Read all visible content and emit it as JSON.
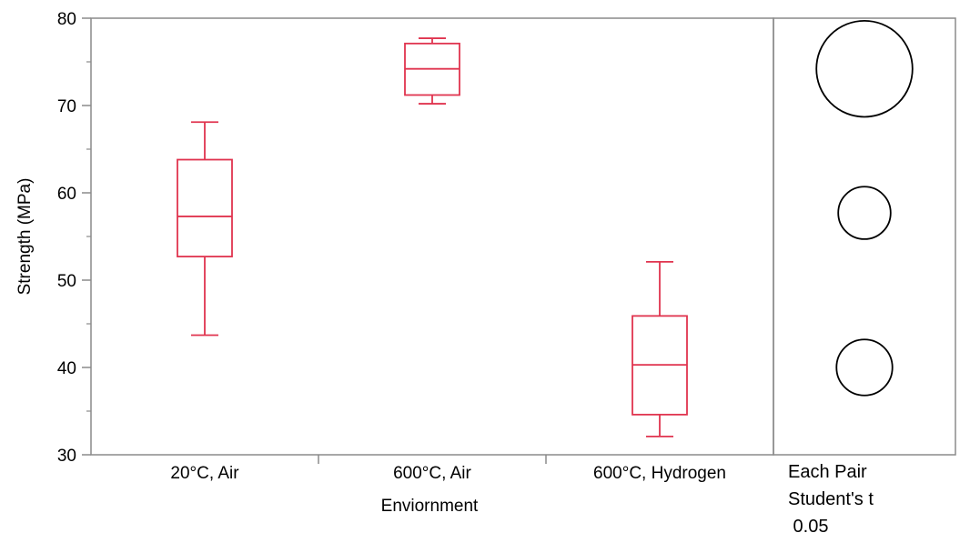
{
  "chart_data": {
    "type": "box",
    "xlabel": "Enviornment",
    "ylabel": "Strength (MPa)",
    "ylim": [
      30,
      80
    ],
    "yticks": [
      30,
      40,
      50,
      60,
      70,
      80
    ],
    "categories": [
      "20°C, Air",
      "600°C, Air",
      "600°C, Hydrogen"
    ],
    "boxes": [
      {
        "category": "20°C, Air",
        "min": 43.7,
        "q1": 52.7,
        "median": 57.3,
        "q3": 63.8,
        "max": 68.1
      },
      {
        "category": "600°C, Air",
        "min": 70.2,
        "q1": 71.2,
        "median": 74.2,
        "q3": 77.1,
        "max": 77.7
      },
      {
        "category": "600°C, Hydrogen",
        "min": 32.1,
        "q1": 34.6,
        "median": 40.3,
        "q3": 45.9,
        "max": 52.1
      }
    ],
    "box_color": "#e0344f",
    "comparison_circles": {
      "label_lines": [
        "Each Pair",
        "Student's t",
        " 0.05"
      ],
      "circles": [
        {
          "category": "600°C, Air",
          "center": 74.2,
          "radius": 5.5
        },
        {
          "category": "20°C, Air",
          "center": 57.7,
          "radius": 3.0
        },
        {
          "category": "600°C, Hydrogen",
          "center": 40.0,
          "radius": 3.2
        }
      ]
    }
  }
}
